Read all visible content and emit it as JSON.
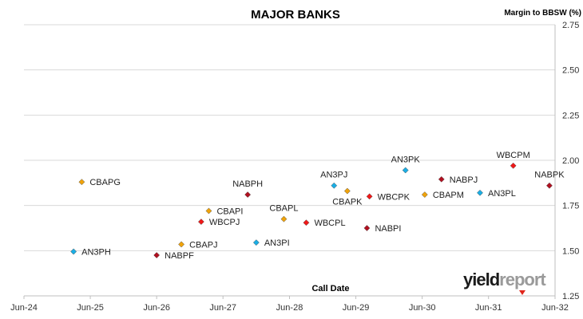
{
  "chart_data": {
    "type": "scatter",
    "title": "MAJOR BANKS",
    "ylabel": "Margin to BBSW (%)",
    "xlabel": "Call Date",
    "x_axis": "date",
    "xlim": [
      "2024-06-01",
      "2032-06-01"
    ],
    "ylim": [
      1.25,
      2.75
    ],
    "x_ticks": [
      "Jun-24",
      "Jun-25",
      "Jun-26",
      "Jun-27",
      "Jun-28",
      "Jun-29",
      "Jun-30",
      "Jun-31",
      "Jun-32"
    ],
    "y_ticks": [
      "1.25",
      "1.50",
      "1.75",
      "2.00",
      "2.25",
      "2.50",
      "2.75"
    ],
    "grid": "horizontal",
    "legend": "none",
    "series": [
      {
        "color": "#f0a30a",
        "points": [
          {
            "label": "CBAPG",
            "x": "2025-04-15",
            "y": 1.88
          },
          {
            "label": "CBAPJ",
            "x": "2026-10-15",
            "y": 1.535
          },
          {
            "label": "CBAPI",
            "x": "2027-03-15",
            "y": 1.72
          },
          {
            "label": "CBAPL",
            "x": "2028-05-01",
            "y": 1.675
          },
          {
            "label": "CBAPK",
            "x": "2029-04-15",
            "y": 1.83
          },
          {
            "label": "CBAPM",
            "x": "2030-06-15",
            "y": 1.81
          }
        ]
      },
      {
        "color": "#1aaee5",
        "points": [
          {
            "label": "AN3PH",
            "x": "2025-03-01",
            "y": 1.495
          },
          {
            "label": "AN3PI",
            "x": "2027-12-01",
            "y": 1.545
          },
          {
            "label": "AN3PJ",
            "x": "2029-02-01",
            "y": 1.86
          },
          {
            "label": "AN3PK",
            "x": "2030-03-01",
            "y": 1.945
          },
          {
            "label": "AN3PL",
            "x": "2031-04-15",
            "y": 1.82
          }
        ]
      },
      {
        "color": "#b01020",
        "points": [
          {
            "label": "NABPF",
            "x": "2026-06-01",
            "y": 1.475
          },
          {
            "label": "NABPH",
            "x": "2027-10-15",
            "y": 1.81
          },
          {
            "label": "NABPI",
            "x": "2029-08-01",
            "y": 1.625
          },
          {
            "label": "NABPJ",
            "x": "2030-09-15",
            "y": 1.895
          },
          {
            "label": "NABPK",
            "x": "2032-05-01",
            "y": 1.86
          }
        ]
      },
      {
        "color": "#f01818",
        "points": [
          {
            "label": "WBCPJ",
            "x": "2027-02-01",
            "y": 1.66
          },
          {
            "label": "WBCPL",
            "x": "2028-09-01",
            "y": 1.655
          },
          {
            "label": "WBCPK",
            "x": "2029-08-15",
            "y": 1.8
          },
          {
            "label": "WBCPM",
            "x": "2031-10-15",
            "y": 1.97
          }
        ]
      }
    ]
  },
  "brand": {
    "part1": "yield",
    "part2": "report"
  }
}
